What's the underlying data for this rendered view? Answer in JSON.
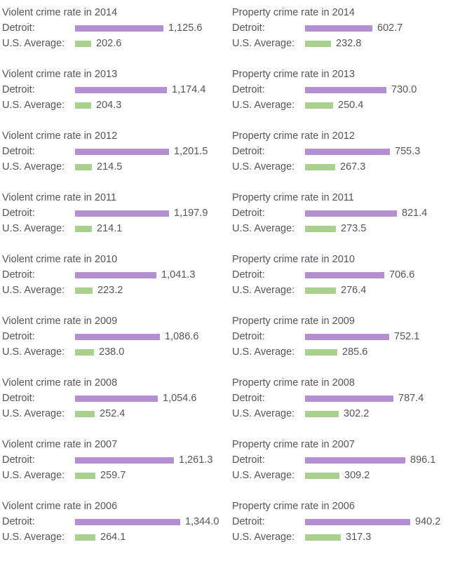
{
  "colors": {
    "city": "#b48fd3",
    "us": "#a9d18e",
    "text": "#555555"
  },
  "labels": {
    "city": "Detroit:",
    "us": "U.S. Average:"
  },
  "chart_data": [
    {
      "type": "bar",
      "title_prefix": "Violent crime rate in",
      "series_names": [
        "Detroit",
        "U.S. Average"
      ],
      "years": [
        "2014",
        "2013",
        "2012",
        "2011",
        "2010",
        "2009",
        "2008",
        "2007",
        "2006"
      ],
      "titles": [
        "Violent crime rate in 2014",
        "Violent crime rate in 2013",
        "Violent crime rate in 2012",
        "Violent crime rate in 2011",
        "Violent crime rate in 2010",
        "Violent crime rate in 2009",
        "Violent crime rate in 2008",
        "Violent crime rate in 2007",
        "Violent crime rate in 2006"
      ],
      "detroit": [
        1125.6,
        1174.4,
        1201.5,
        1197.9,
        1041.3,
        1086.6,
        1054.6,
        1261.3,
        1344.0
      ],
      "detroit_labels": [
        "1,125.6",
        "1,174.4",
        "1,201.5",
        "1,197.9",
        "1,041.3",
        "1,086.6",
        "1,054.6",
        "1,261.3",
        "1,344.0"
      ],
      "us": [
        202.6,
        204.3,
        214.5,
        214.1,
        223.2,
        238.0,
        252.4,
        259.7,
        264.1
      ],
      "us_labels": [
        "202.6",
        "204.3",
        "214.5",
        "214.1",
        "223.2",
        "238.0",
        "252.4",
        "259.7",
        "264.1"
      ],
      "xlim": [
        0,
        1344.0
      ]
    },
    {
      "type": "bar",
      "title_prefix": "Property crime rate in",
      "series_names": [
        "Detroit",
        "U.S. Average"
      ],
      "years": [
        "2014",
        "2013",
        "2012",
        "2011",
        "2010",
        "2009",
        "2008",
        "2007",
        "2006"
      ],
      "titles": [
        "Property crime rate in 2014",
        "Property crime rate in 2013",
        "Property crime rate in 2012",
        "Property crime rate in 2011",
        "Property crime rate in 2010",
        "Property crime rate in 2009",
        "Property crime rate in 2008",
        "Property crime rate in 2007",
        "Property crime rate in 2006"
      ],
      "detroit": [
        602.7,
        730.0,
        755.3,
        821.4,
        706.6,
        752.1,
        787.4,
        896.1,
        940.2
      ],
      "detroit_labels": [
        "602.7",
        "730.0",
        "755.3",
        "821.4",
        "706.6",
        "752.1",
        "787.4",
        "896.1",
        "940.2"
      ],
      "us": [
        232.8,
        250.4,
        267.3,
        273.5,
        276.4,
        285.6,
        302.2,
        309.2,
        317.3
      ],
      "us_labels": [
        "232.8",
        "250.4",
        "267.3",
        "273.5",
        "276.4",
        "285.6",
        "302.2",
        "309.2",
        "317.3"
      ],
      "xlim": [
        0,
        940.2
      ]
    }
  ]
}
